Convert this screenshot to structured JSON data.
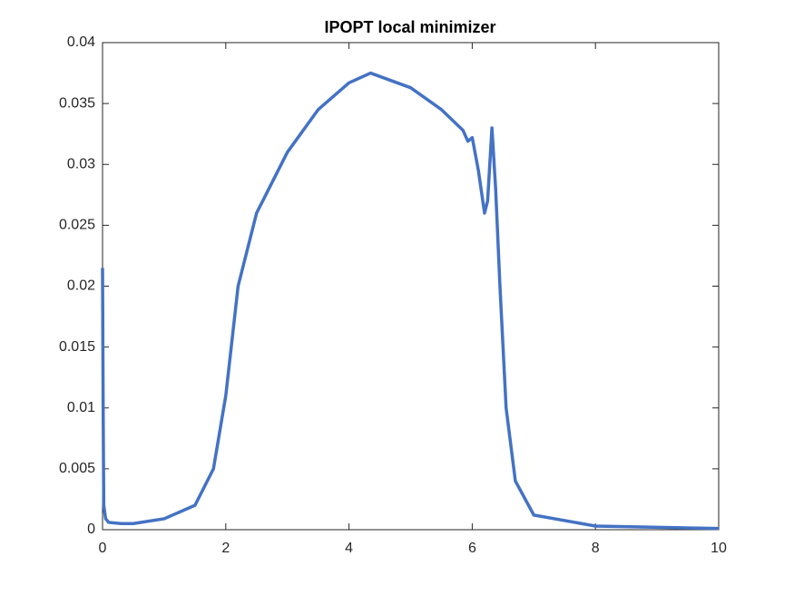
{
  "chart_data": {
    "type": "line",
    "title": "IPOPT local minimizer",
    "x": [
      0,
      0.01,
      0.02,
      0.05,
      0.1,
      0.3,
      0.5,
      1,
      1.5,
      1.8,
      2.0,
      2.2,
      2.5,
      3,
      3.5,
      4,
      4.35,
      5,
      5.5,
      5.85,
      5.93,
      6.0,
      6.1,
      6.2,
      6.25,
      6.32,
      6.38,
      6.45,
      6.55,
      6.7,
      7,
      8,
      10
    ],
    "series": [
      {
        "color": "#4472c4",
        "values": [
          0.0215,
          0.01,
          0.002,
          0.0009,
          0.0006,
          0.0005,
          0.0005,
          0.0009,
          0.002,
          0.005,
          0.011,
          0.02,
          0.026,
          0.031,
          0.0345,
          0.0367,
          0.0375,
          0.0363,
          0.0345,
          0.0328,
          0.0319,
          0.0322,
          0.0295,
          0.026,
          0.027,
          0.033,
          0.028,
          0.02,
          0.01,
          0.004,
          0.0012,
          0.0003,
          0.0001
        ]
      }
    ],
    "xlim": [
      0,
      10
    ],
    "xticks": [
      0,
      2,
      4,
      6,
      8,
      10
    ],
    "ylim": [
      0,
      0.04
    ],
    "yticks": [
      0,
      0.005,
      0.01,
      0.015,
      0.02,
      0.025,
      0.03,
      0.035,
      0.04
    ],
    "grid": false
  }
}
